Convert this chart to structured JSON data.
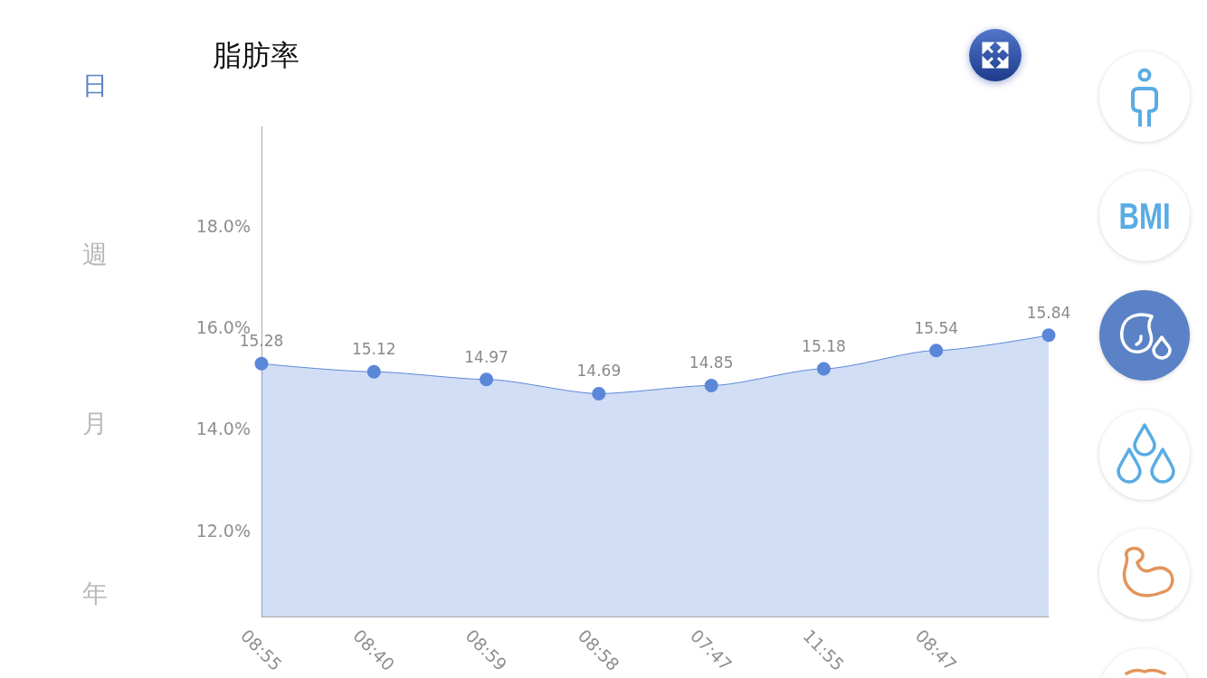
{
  "chart_data": {
    "type": "area",
    "title": "脂肪率",
    "categories": [
      "08:55",
      "08:40",
      "08:59",
      "08:58",
      "07:47",
      "11:55",
      "08:47",
      null
    ],
    "values": [
      15.28,
      15.12,
      14.97,
      14.69,
      14.85,
      15.18,
      15.54,
      15.84
    ],
    "color": "#5b87d9",
    "ylim": [
      10.3,
      19.95
    ],
    "yticks": [
      {
        "value": 12,
        "label": "12.0%"
      },
      {
        "value": 14,
        "label": "14.0%"
      },
      {
        "value": 16,
        "label": "16.0%"
      },
      {
        "value": 18,
        "label": "18.0%"
      }
    ],
    "data_labels": true,
    "marker": "circle",
    "grid": false,
    "annotations": [
      "日",
      "週",
      "月",
      "年",
      "BMI"
    ]
  }
}
